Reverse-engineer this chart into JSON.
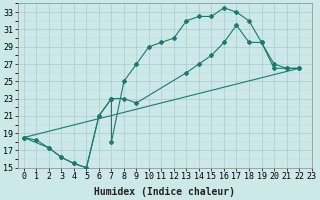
{
  "line1_x": [
    0,
    1,
    2,
    3,
    4,
    5,
    6,
    7,
    7,
    8,
    9,
    10,
    11,
    12,
    13,
    14,
    15,
    16,
    17,
    18,
    19,
    20,
    21,
    22
  ],
  "line1_y": [
    18.5,
    18.2,
    17.3,
    16.2,
    15.5,
    15.0,
    21.0,
    23.0,
    18.0,
    25.0,
    27.0,
    29.0,
    29.5,
    30.0,
    32.0,
    32.5,
    32.5,
    33.5,
    33.0,
    32.0,
    29.5,
    27.0,
    26.5,
    26.5
  ],
  "line2_x": [
    0,
    2,
    3,
    4,
    5,
    6,
    7,
    8,
    9,
    13,
    14,
    15,
    16,
    17,
    18,
    19,
    20,
    21,
    22
  ],
  "line2_y": [
    18.5,
    17.3,
    16.2,
    15.5,
    15.0,
    21.0,
    23.0,
    23.0,
    22.5,
    26.0,
    27.0,
    28.0,
    29.5,
    31.5,
    29.5,
    29.5,
    26.5,
    26.5,
    26.5
  ],
  "line3_x": [
    0,
    22
  ],
  "line3_y": [
    18.5,
    26.5
  ],
  "color": "#1a7a6e",
  "bg_color": "#cce8e8",
  "grid_major_color": "#aacccc",
  "grid_minor_color": "#bbdddd",
  "xlabel": "Humidex (Indice chaleur)",
  "ylim": [
    15,
    34
  ],
  "xlim": [
    -0.5,
    23
  ],
  "yticks": [
    15,
    17,
    19,
    21,
    23,
    25,
    27,
    29,
    31,
    33
  ],
  "xticks": [
    0,
    1,
    2,
    3,
    4,
    5,
    6,
    7,
    8,
    9,
    10,
    11,
    12,
    13,
    14,
    15,
    16,
    17,
    18,
    19,
    20,
    21,
    22,
    23
  ],
  "label_fontsize": 7,
  "tick_fontsize": 6
}
